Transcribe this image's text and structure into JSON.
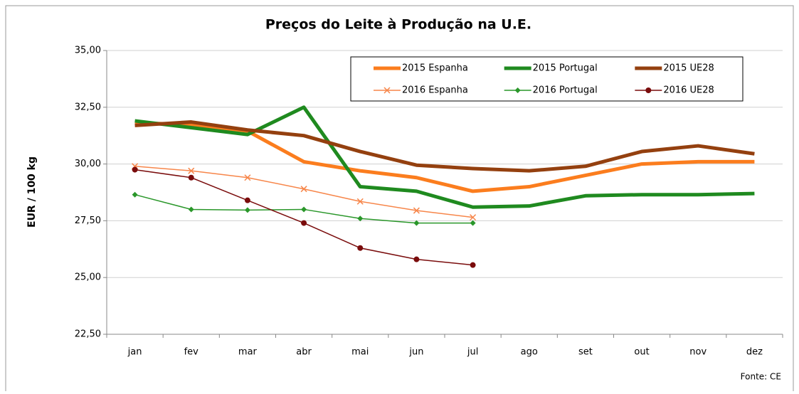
{
  "chart_data": {
    "type": "line",
    "title": "Preços do Leite à Produção na U.E.",
    "y_label": "EUR / 100 kg",
    "source": "Fonte: CE",
    "categories": [
      "jan",
      "fev",
      "mar",
      "abr",
      "mai",
      "jun",
      "jul",
      "ago",
      "set",
      "out",
      "nov",
      "dez"
    ],
    "ylim": [
      22.5,
      35
    ],
    "yticks": [
      {
        "value": 22.5,
        "label": "22,50"
      },
      {
        "value": 25,
        "label": "25,00"
      },
      {
        "value": 27.5,
        "label": "27,50"
      },
      {
        "value": 30,
        "label": "30,00"
      },
      {
        "value": 32.5,
        "label": "32,50"
      },
      {
        "value": 35,
        "label": "35,00"
      }
    ],
    "grid": true,
    "legend": "top-right",
    "series": [
      {
        "name": "2015 Espanha",
        "color": "#fb7d1e",
        "width": 5,
        "marker": "none",
        "values": [
          31.8,
          31.75,
          31.45,
          30.1,
          29.7,
          29.4,
          28.8,
          29.0,
          29.5,
          30.0,
          30.1,
          30.1
        ]
      },
      {
        "name": "2015 Portugal",
        "color": "#1f8a1f",
        "width": 5,
        "marker": "none",
        "values": [
          31.9,
          31.6,
          31.3,
          32.5,
          29.0,
          28.8,
          28.1,
          28.15,
          28.6,
          28.65,
          28.65,
          28.7
        ]
      },
      {
        "name": "2015 UE28",
        "color": "#94400f",
        "width": 5,
        "marker": "none",
        "values": [
          31.7,
          31.85,
          31.5,
          31.25,
          30.55,
          29.95,
          29.8,
          29.7,
          29.9,
          30.55,
          30.8,
          30.45
        ]
      },
      {
        "name": "2016 Espanha",
        "color": "#f7864a",
        "width": 1.5,
        "marker": "x",
        "values": [
          29.9,
          29.7,
          29.4,
          28.9,
          28.35,
          27.95,
          27.65,
          null,
          null,
          null,
          null,
          null
        ]
      },
      {
        "name": "2016 Portugal",
        "color": "#2a972a",
        "width": 1.5,
        "marker": "diamond",
        "values": [
          28.65,
          28.0,
          27.97,
          28.0,
          27.6,
          27.4,
          27.4,
          null,
          null,
          null,
          null,
          null
        ]
      },
      {
        "name": "2016 UE28",
        "color": "#7a0c0c",
        "width": 1.5,
        "marker": "circle",
        "values": [
          29.75,
          29.4,
          28.4,
          27.4,
          26.3,
          25.8,
          25.55,
          null,
          null,
          null,
          null,
          null
        ]
      }
    ]
  }
}
